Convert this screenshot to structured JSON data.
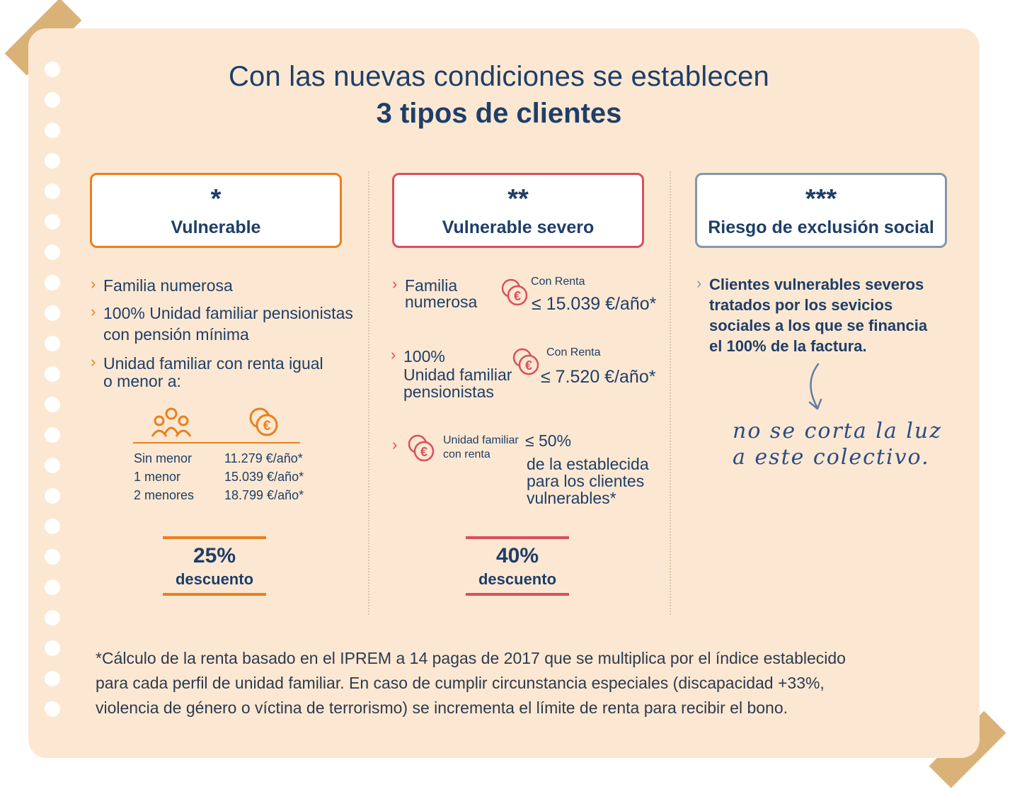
{
  "title": {
    "line1": "Con las nuevas condiciones se establecen",
    "line2": "3 tipos de clientes"
  },
  "colors": {
    "paper": "#fce8d2",
    "navy": "#1f3e68",
    "orange": "#e9801d",
    "red": "#d8505e",
    "grey": "#8696ab",
    "tape": "#d4a55f"
  },
  "columns": [
    {
      "stars": "*",
      "name": "Vulnerable",
      "bullets": [
        "Familia numerosa",
        "100% Unidad familiar pensionistas",
        "con pensión mínima",
        "Unidad familiar con renta igual",
        "o menor a:"
      ],
      "table": {
        "icons": [
          "family-icon",
          "euro-coin-icon"
        ],
        "rows": [
          {
            "label": "Sin menor",
            "value": "11.279 €/año*"
          },
          {
            "label": "1 menor",
            "value": "15.039 €/año*"
          },
          {
            "label": "2 menores",
            "value": "18.799 €/año*"
          }
        ]
      },
      "discount": {
        "percent": "25%",
        "label": "descuento"
      }
    },
    {
      "stars": "**",
      "name": "Vulnerable severo",
      "items": [
        {
          "lines": [
            "Familia",
            "numerosa"
          ],
          "small": "Con Renta",
          "value": "≤ 15.039 €/año*"
        },
        {
          "lines": [
            "100%",
            "Unidad familiar",
            "pensionistas"
          ],
          "small": "Con Renta",
          "value": "≤ 7.520 €/año*"
        },
        {
          "small_lines": [
            "Unidad familiar",
            "con renta"
          ],
          "value_lines": [
            "≤ 50%",
            "de la establecida",
            "para los clientes",
            "vulnerables*"
          ]
        }
      ],
      "discount": {
        "percent": "40%",
        "label": "descuento"
      }
    },
    {
      "stars": "***",
      "name": "Riesgo de exclusión social",
      "bullet_lines": [
        "Clientes vulnerables severos",
        "tratados por los sevicios",
        "sociales a los que se financia",
        "el 100% de la factura."
      ],
      "handwritten": [
        "no se corta la luz",
        "a este colectivo."
      ]
    }
  ],
  "footnote": [
    "*Cálculo de la renta basado en el IPREM a 14 pagas de 2017 que se multiplica por el índice establecido",
    "para cada perfil de unidad familiar. En caso de cumplir circunstancia especiales (discapacidad +33%,",
    "violencia de género o víctina de terrorismo) se incrementa el límite de renta para recibir el bono."
  ]
}
